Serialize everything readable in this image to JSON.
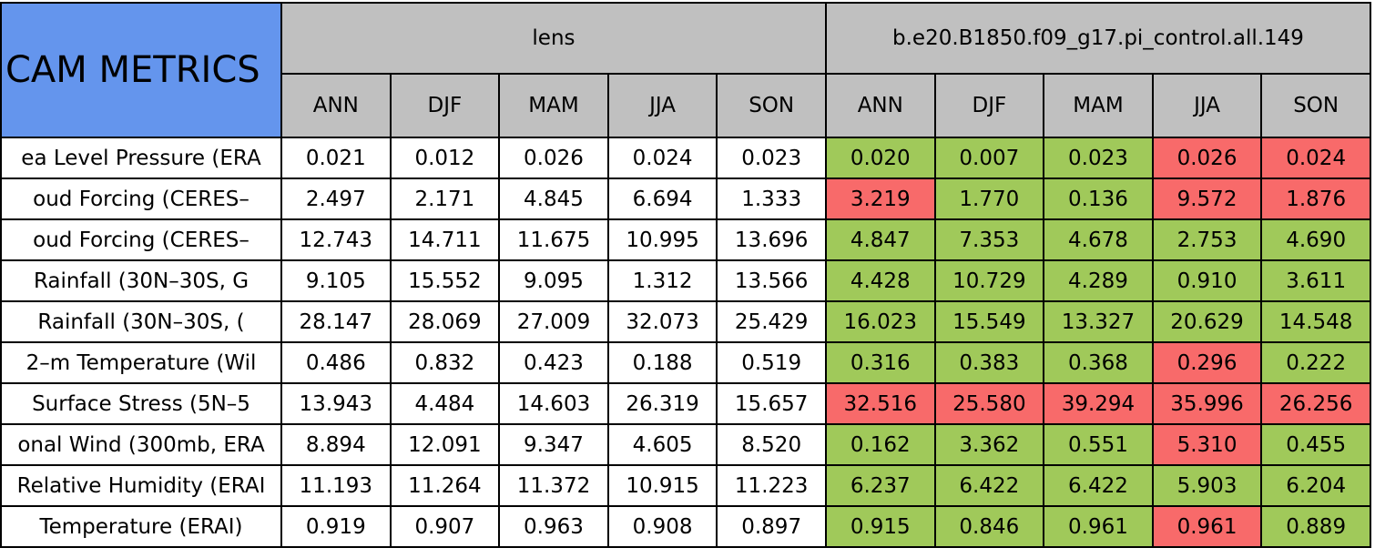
{
  "header": {
    "title": "CAM METRICS",
    "groups": [
      {
        "name": "lens",
        "seasons": [
          "ANN",
          "DJF",
          "MAM",
          "JJA",
          "SON"
        ]
      },
      {
        "name": "b.e20.B1850.f09_g17.pi_control.all.149",
        "seasons": [
          "ANN",
          "DJF",
          "MAM",
          "JJA",
          "SON"
        ]
      }
    ]
  },
  "colors": {
    "header": "#c0c0c0",
    "title": "#6495ed",
    "good": "#a0c95a",
    "bad": "#f86a6a"
  },
  "table": {
    "rows": [
      {
        "label": "ea Level Pressure (ERA",
        "lens": [
          "0.021",
          "0.012",
          "0.026",
          "0.024",
          "0.023"
        ],
        "case": [
          "0.020",
          "0.007",
          "0.023",
          "0.026",
          "0.024"
        ],
        "status": [
          "good",
          "good",
          "good",
          "bad",
          "bad"
        ]
      },
      {
        "label": "oud Forcing (CERES–",
        "lens": [
          "2.497",
          "2.171",
          "4.845",
          "6.694",
          "1.333"
        ],
        "case": [
          "3.219",
          "1.770",
          "0.136",
          "9.572",
          "1.876"
        ],
        "status": [
          "bad",
          "good",
          "good",
          "bad",
          "bad"
        ]
      },
      {
        "label": "oud Forcing (CERES–",
        "lens": [
          "12.743",
          "14.711",
          "11.675",
          "10.995",
          "13.696"
        ],
        "case": [
          "4.847",
          "7.353",
          "4.678",
          "2.753",
          "4.690"
        ],
        "status": [
          "good",
          "good",
          "good",
          "good",
          "good"
        ]
      },
      {
        "label": "Rainfall (30N–30S, G",
        "lens": [
          "9.105",
          "15.552",
          "9.095",
          "1.312",
          "13.566"
        ],
        "case": [
          "4.428",
          "10.729",
          "4.289",
          "0.910",
          "3.611"
        ],
        "status": [
          "good",
          "good",
          "good",
          "good",
          "good"
        ]
      },
      {
        "label": "Rainfall (30N–30S, (",
        "lens": [
          "28.147",
          "28.069",
          "27.009",
          "32.073",
          "25.429"
        ],
        "case": [
          "16.023",
          "15.549",
          "13.327",
          "20.629",
          "14.548"
        ],
        "status": [
          "good",
          "good",
          "good",
          "good",
          "good"
        ]
      },
      {
        "label": "2–m Temperature (Wil",
        "lens": [
          "0.486",
          "0.832",
          "0.423",
          "0.188",
          "0.519"
        ],
        "case": [
          "0.316",
          "0.383",
          "0.368",
          "0.296",
          "0.222"
        ],
        "status": [
          "good",
          "good",
          "good",
          "bad",
          "good"
        ]
      },
      {
        "label": "Surface Stress (5N–5",
        "lens": [
          "13.943",
          "4.484",
          "14.603",
          "26.319",
          "15.657"
        ],
        "case": [
          "32.516",
          "25.580",
          "39.294",
          "35.996",
          "26.256"
        ],
        "status": [
          "bad",
          "bad",
          "bad",
          "bad",
          "bad"
        ]
      },
      {
        "label": "onal Wind (300mb, ERA",
        "lens": [
          "8.894",
          "12.091",
          "9.347",
          "4.605",
          "8.520"
        ],
        "case": [
          "0.162",
          "3.362",
          "0.551",
          "5.310",
          "0.455"
        ],
        "status": [
          "good",
          "good",
          "good",
          "bad",
          "good"
        ]
      },
      {
        "label": "Relative Humidity (ERAI",
        "lens": [
          "11.193",
          "11.264",
          "11.372",
          "10.915",
          "11.223"
        ],
        "case": [
          "6.237",
          "6.422",
          "6.422",
          "5.903",
          "6.204"
        ],
        "status": [
          "good",
          "good",
          "good",
          "good",
          "good"
        ]
      },
      {
        "label": "Temperature (ERAI)",
        "lens": [
          "0.919",
          "0.907",
          "0.963",
          "0.908",
          "0.897"
        ],
        "case": [
          "0.915",
          "0.846",
          "0.961",
          "0.961",
          "0.889"
        ],
        "status": [
          "good",
          "good",
          "good",
          "bad",
          "good"
        ]
      }
    ]
  }
}
